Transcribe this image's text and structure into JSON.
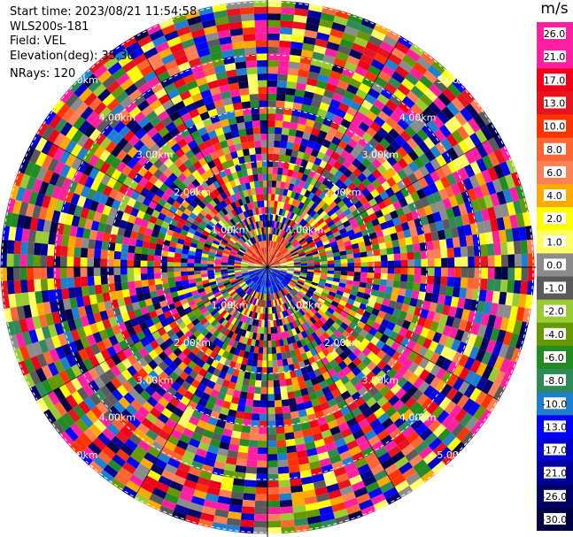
{
  "header": {
    "start_time": "Start time: 2023/08/21 11:54:58",
    "instrument": "WLS200s-181",
    "field": "Field: VEL",
    "elevation": "Elevation(deg): 35.30",
    "nrays": "NRays: 120"
  },
  "chart_data": {
    "type": "heatmap",
    "projection": "polar-ppi",
    "nrays": 120,
    "range_rings_km": [
      1.0,
      2.0,
      3.0,
      4.0,
      5.0
    ],
    "range_labels": [
      "1.00km",
      "2.00km",
      "3.00km",
      "4.00km",
      "5.00km"
    ],
    "max_range_km": 5.8,
    "colorbar": {
      "unit": "m/s",
      "ticks": [
        "26.0",
        "21.0",
        "17.0",
        "13.0",
        "10.0",
        "8.0",
        "6.0",
        "4.0",
        "2.0",
        "1.0",
        "0.0",
        "-1.0",
        "-2.0",
        "-4.0",
        "-6.0",
        "-8.0",
        "-10.0",
        "-13.0",
        "-17.0",
        "-21.0",
        "-26.0",
        "-30.0"
      ],
      "colors": [
        "#ff1fa0",
        "#ff1fa0",
        "#f2001a",
        "#e6141f",
        "#ff3300",
        "#ff6633",
        "#ff8055",
        "#ffaa00",
        "#ffff00",
        "#ffff66",
        "#8c8c8c",
        "#5a5a5a",
        "#99cc33",
        "#669900",
        "#228b22",
        "#2e8b57",
        "#1e7fd0",
        "#0000ff",
        "#0000cc",
        "#000099",
        "#000066",
        "#000044"
      ]
    },
    "legend_position": "right"
  },
  "colors": {
    "ring": "#ffffff",
    "crosshair": "#000000"
  }
}
